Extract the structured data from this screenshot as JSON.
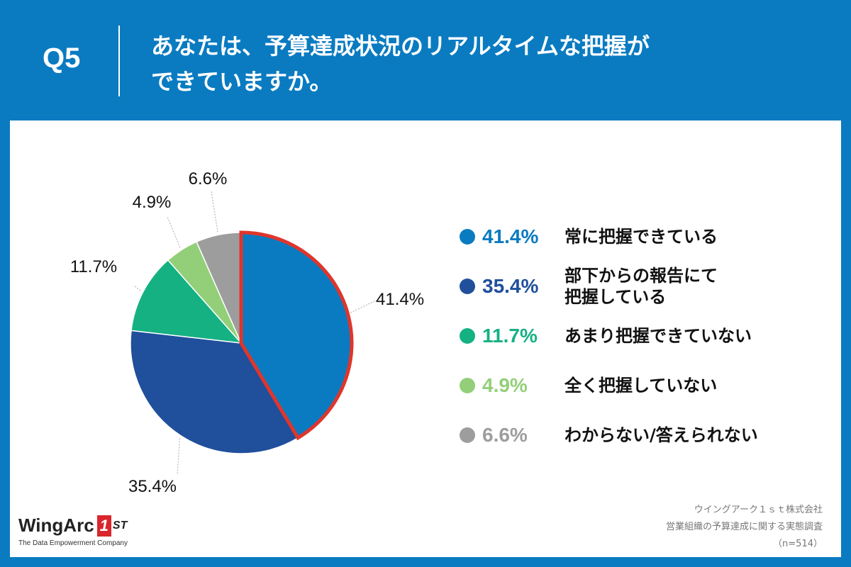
{
  "header": {
    "qnum": "Q5",
    "question_line1": "あなたは、予算達成状況のリアルタイムな把握が",
    "question_line2": "できていますか。"
  },
  "chart_data": {
    "type": "pie",
    "title": "",
    "slices": [
      {
        "label": "常に把握できている",
        "value": 41.4,
        "display": "41.4%",
        "color": "#0a7bc1",
        "highlight": true
      },
      {
        "label": "部下からの報告にて把握している",
        "value": 35.4,
        "display": "35.4%",
        "color": "#204f9c",
        "highlight": false
      },
      {
        "label": "あまり把握できていない",
        "value": 11.7,
        "display": "11.7%",
        "color": "#15b183",
        "highlight": false
      },
      {
        "label": "全く把握していない",
        "value": 4.9,
        "display": "4.9%",
        "color": "#93cf78",
        "highlight": false
      },
      {
        "label": "わからない/答えられない",
        "value": 6.6,
        "display": "6.6%",
        "color": "#9d9d9d",
        "highlight": false
      }
    ],
    "highlight_color": "#e0352b"
  },
  "legend": [
    {
      "pct": "41.4%",
      "text_lines": [
        "常に把握できている"
      ],
      "color": "#0a7bc1"
    },
    {
      "pct": "35.4%",
      "text_lines": [
        "部下からの報告にて",
        "把握している"
      ],
      "color": "#204f9c"
    },
    {
      "pct": "11.7%",
      "text_lines": [
        "あまり把握できていない"
      ],
      "color": "#15b183"
    },
    {
      "pct": "4.9%",
      "text_lines": [
        "全く把握していない"
      ],
      "color": "#93cf78"
    },
    {
      "pct": "6.6%",
      "text_lines": [
        "わからない/答えられない"
      ],
      "color": "#9d9d9d"
    }
  ],
  "logo": {
    "name": "WingArc",
    "badge": "1",
    "suffix": "ST",
    "tagline": "The Data Empowerment Company"
  },
  "source": {
    "line1": "ウイングアーク１ｓｔ株式会社",
    "line2": "営業組織の予算達成に関する実態調査",
    "line3": "（n=514）"
  }
}
